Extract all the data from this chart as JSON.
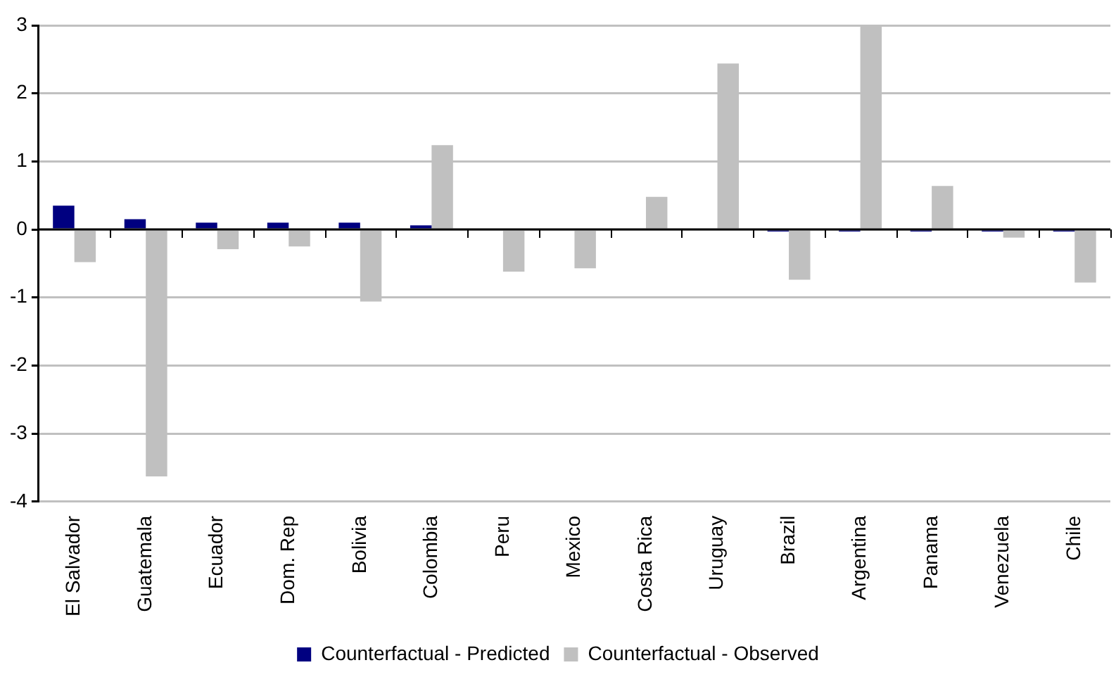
{
  "chart_data": {
    "type": "bar",
    "categories": [
      "El Salvador",
      "Guatemala",
      "Ecuador",
      "Dom. Rep",
      "Bolivia",
      "Colombia",
      "Peru",
      "Mexico",
      "Costa Rica",
      "Uruguay",
      "Brazil",
      "Argentina",
      "Panama",
      "Venezuela",
      "Chile"
    ],
    "series": [
      {
        "name": "Counterfactual - Predicted",
        "color": "#000080",
        "values": [
          0.35,
          0.15,
          0.1,
          0.1,
          0.1,
          0.06,
          null,
          null,
          null,
          null,
          -0.03,
          -0.03,
          -0.03,
          -0.03,
          -0.03
        ]
      },
      {
        "name": "Counterfactual - Observed",
        "color": "#c0c0c0",
        "values": [
          -0.48,
          -3.63,
          -0.29,
          -0.25,
          -1.06,
          1.24,
          -0.62,
          -0.57,
          0.48,
          2.44,
          -0.74,
          2.98,
          0.64,
          -0.12,
          -0.78
        ]
      }
    ],
    "ylim": [
      -4,
      3
    ],
    "yticks": [
      -4,
      -3,
      -2,
      -1,
      0,
      1,
      2,
      3
    ],
    "grid": "y",
    "legend": "bottom"
  }
}
